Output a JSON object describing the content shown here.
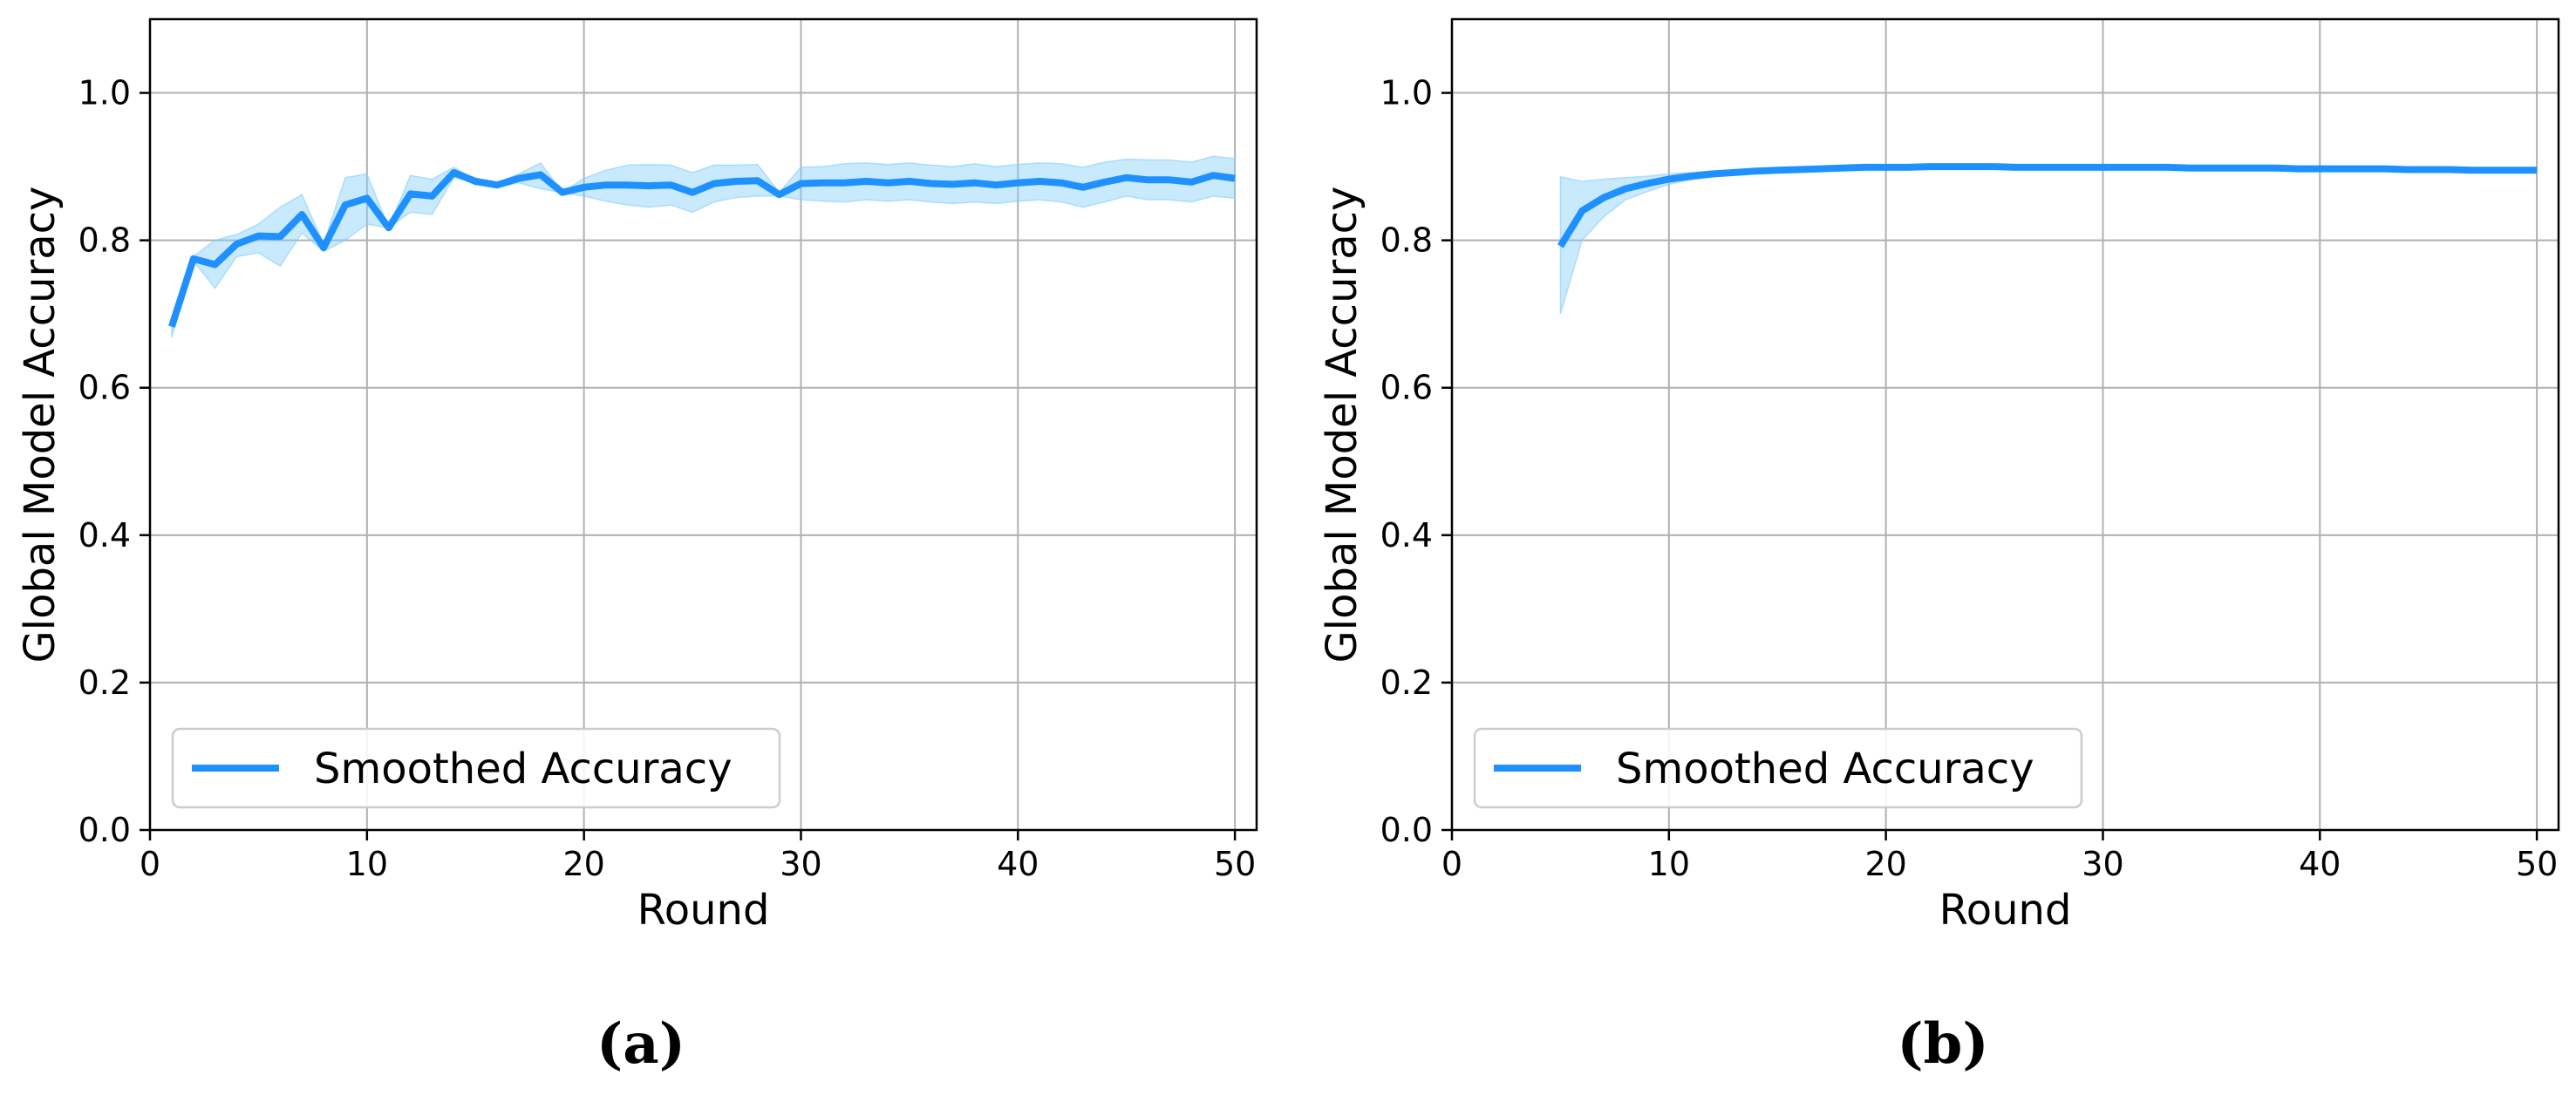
{
  "colors": {
    "line": "#1e90ff",
    "band": "#87cefa",
    "grid": "#b0b0b0",
    "axes": "#000000",
    "legend_border": "#cccccc"
  },
  "chart_data": [
    {
      "type": "line",
      "panel_label": "(a)",
      "xlabel": "Round",
      "ylabel": "Global Model Accuracy",
      "xlim": [
        0,
        51
      ],
      "ylim": [
        0,
        1.1
      ],
      "xticks": [
        0,
        10,
        20,
        30,
        40,
        50
      ],
      "yticks": [
        0.0,
        0.2,
        0.4,
        0.6,
        0.8,
        1.0
      ],
      "xtick_labels": [
        "0",
        "10",
        "20",
        "30",
        "40",
        "50"
      ],
      "ytick_labels": [
        "0.0",
        "0.2",
        "0.4",
        "0.6",
        "0.8",
        "1.0"
      ],
      "grid": true,
      "legend": {
        "entries": [
          "Smoothed Accuracy"
        ],
        "placement": "lower-left"
      },
      "series": [
        {
          "name": "Smoothed Accuracy",
          "x": [
            1,
            2,
            3,
            4,
            5,
            6,
            7,
            8,
            9,
            10,
            11,
            12,
            13,
            14,
            15,
            16,
            17,
            18,
            19,
            20,
            21,
            22,
            23,
            24,
            25,
            26,
            27,
            28,
            29,
            30,
            31,
            32,
            33,
            34,
            35,
            36,
            37,
            38,
            39,
            40,
            41,
            42,
            43,
            44,
            45,
            46,
            47,
            48,
            49,
            50
          ],
          "y": [
            0.683,
            0.775,
            0.767,
            0.795,
            0.806,
            0.805,
            0.835,
            0.79,
            0.848,
            0.857,
            0.817,
            0.863,
            0.86,
            0.892,
            0.88,
            0.875,
            0.884,
            0.889,
            0.865,
            0.872,
            0.875,
            0.875,
            0.874,
            0.875,
            0.865,
            0.877,
            0.88,
            0.881,
            0.862,
            0.877,
            0.878,
            0.878,
            0.88,
            0.878,
            0.88,
            0.877,
            0.876,
            0.878,
            0.875,
            0.878,
            0.88,
            0.878,
            0.872,
            0.879,
            0.885,
            0.882,
            0.882,
            0.879,
            0.888,
            0.884
          ],
          "lower": [
            0.668,
            0.772,
            0.735,
            0.778,
            0.783,
            0.765,
            0.81,
            0.785,
            0.8,
            0.822,
            0.817,
            0.838,
            0.835,
            0.885,
            0.878,
            0.872,
            0.878,
            0.87,
            0.865,
            0.86,
            0.853,
            0.848,
            0.845,
            0.848,
            0.838,
            0.852,
            0.858,
            0.86,
            0.86,
            0.855,
            0.853,
            0.852,
            0.855,
            0.853,
            0.855,
            0.852,
            0.85,
            0.852,
            0.85,
            0.853,
            0.855,
            0.852,
            0.845,
            0.852,
            0.86,
            0.855,
            0.855,
            0.852,
            0.86,
            0.857
          ],
          "upper": [
            0.695,
            0.778,
            0.8,
            0.808,
            0.822,
            0.845,
            0.862,
            0.795,
            0.885,
            0.89,
            0.817,
            0.888,
            0.883,
            0.899,
            0.882,
            0.878,
            0.89,
            0.905,
            0.865,
            0.884,
            0.895,
            0.902,
            0.903,
            0.902,
            0.892,
            0.902,
            0.902,
            0.903,
            0.865,
            0.899,
            0.9,
            0.904,
            0.905,
            0.903,
            0.905,
            0.902,
            0.9,
            0.904,
            0.9,
            0.903,
            0.905,
            0.904,
            0.899,
            0.906,
            0.91,
            0.909,
            0.909,
            0.906,
            0.914,
            0.911
          ]
        }
      ]
    },
    {
      "type": "line",
      "panel_label": "(b)",
      "xlabel": "Round",
      "ylabel": "Global Model Accuracy",
      "xlim": [
        0,
        51
      ],
      "ylim": [
        0,
        1.1
      ],
      "xticks": [
        0,
        10,
        20,
        30,
        40,
        50
      ],
      "yticks": [
        0.0,
        0.2,
        0.4,
        0.6,
        0.8,
        1.0
      ],
      "xtick_labels": [
        "0",
        "10",
        "20",
        "30",
        "40",
        "50"
      ],
      "ytick_labels": [
        "0.0",
        "0.2",
        "0.4",
        "0.6",
        "0.8",
        "1.0"
      ],
      "grid": true,
      "legend": {
        "entries": [
          "Smoothed Accuracy"
        ],
        "placement": "lower-left"
      },
      "series": [
        {
          "name": "Smoothed Accuracy",
          "x": [
            5,
            6,
            7,
            8,
            9,
            10,
            11,
            12,
            13,
            14,
            15,
            16,
            17,
            18,
            19,
            20,
            21,
            22,
            23,
            24,
            25,
            26,
            27,
            28,
            29,
            30,
            31,
            32,
            33,
            34,
            35,
            36,
            37,
            38,
            39,
            40,
            41,
            42,
            43,
            44,
            45,
            46,
            47,
            48,
            49,
            50
          ],
          "y": [
            0.792,
            0.84,
            0.858,
            0.87,
            0.877,
            0.883,
            0.887,
            0.89,
            0.892,
            0.894,
            0.895,
            0.896,
            0.897,
            0.898,
            0.899,
            0.899,
            0.899,
            0.9,
            0.9,
            0.9,
            0.9,
            0.899,
            0.899,
            0.899,
            0.899,
            0.899,
            0.899,
            0.899,
            0.899,
            0.898,
            0.898,
            0.898,
            0.898,
            0.898,
            0.897,
            0.897,
            0.897,
            0.897,
            0.897,
            0.896,
            0.896,
            0.896,
            0.895,
            0.895,
            0.895,
            0.895
          ],
          "lower": [
            0.7,
            0.8,
            0.832,
            0.855,
            0.866,
            0.876,
            0.882,
            0.886,
            0.889,
            0.892,
            0.893,
            0.895,
            0.896,
            0.897,
            0.898,
            0.898,
            0.898,
            0.899,
            0.899,
            0.899,
            0.899,
            0.898,
            0.898,
            0.898,
            0.898,
            0.898,
            0.898,
            0.898,
            0.898,
            0.897,
            0.897,
            0.897,
            0.897,
            0.897,
            0.896,
            0.896,
            0.896,
            0.896,
            0.896,
            0.895,
            0.895,
            0.895,
            0.894,
            0.894,
            0.894,
            0.894
          ],
          "upper": [
            0.886,
            0.88,
            0.883,
            0.885,
            0.887,
            0.89,
            0.892,
            0.894,
            0.895,
            0.896,
            0.897,
            0.897,
            0.898,
            0.899,
            0.9,
            0.9,
            0.9,
            0.901,
            0.901,
            0.901,
            0.901,
            0.9,
            0.9,
            0.9,
            0.9,
            0.9,
            0.9,
            0.9,
            0.9,
            0.899,
            0.899,
            0.899,
            0.899,
            0.899,
            0.898,
            0.898,
            0.898,
            0.898,
            0.898,
            0.897,
            0.897,
            0.897,
            0.896,
            0.896,
            0.896,
            0.896
          ]
        }
      ]
    }
  ]
}
